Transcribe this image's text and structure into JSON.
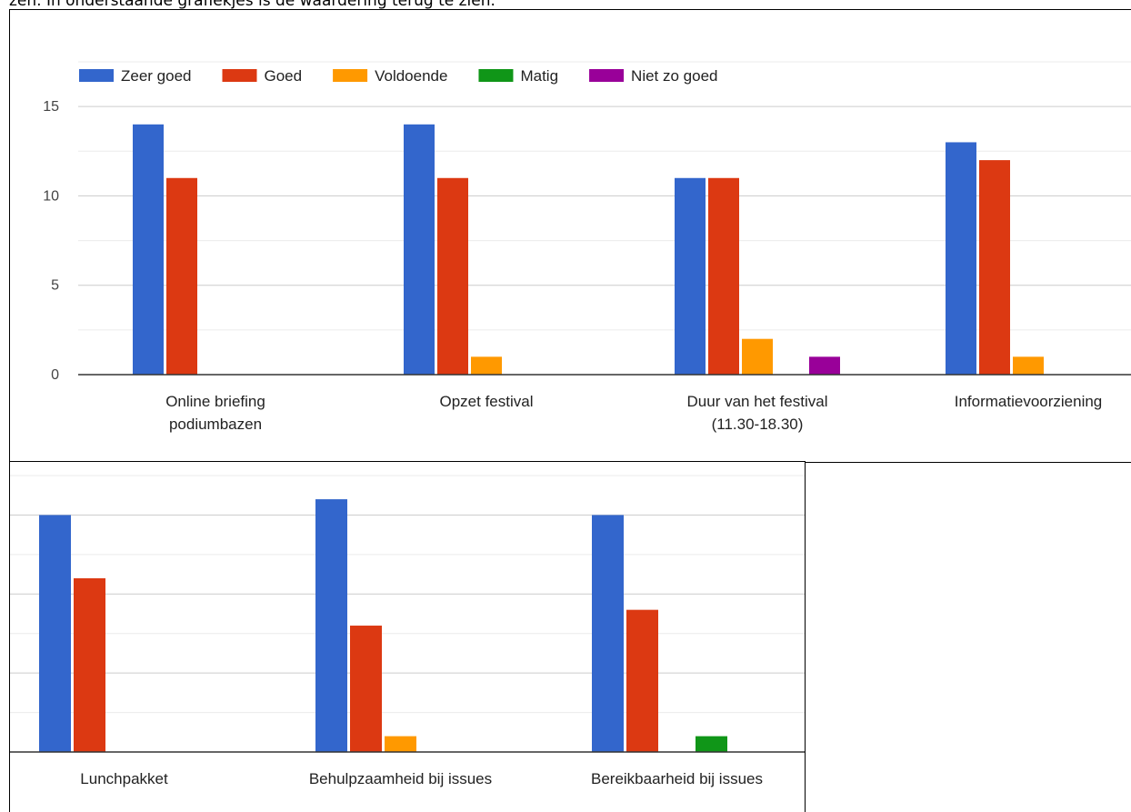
{
  "intro_text": "zen. In onderstaande grafiekjes is de waardering terug te zien.",
  "colors": {
    "Zeer goed": "#3366cc",
    "Goed": "#dc3912",
    "Voldoende": "#ff9900",
    "Matig": "#109618",
    "Niet zo goed": "#990099"
  },
  "chart_data": [
    {
      "type": "bar",
      "legend": [
        "Zeer goed",
        "Goed",
        "Voldoende",
        "Matig",
        "Niet zo goed"
      ],
      "legend_position": "top",
      "yticks": [
        0,
        5,
        10,
        15
      ],
      "ylim": [
        0,
        17.5
      ],
      "grid": true,
      "categories": [
        [
          "Online briefing",
          "podiumbazen"
        ],
        [
          "Opzet festival"
        ],
        [
          "Duur van het festival",
          "(11.30-18.30)"
        ],
        [
          "Informatievoorziening"
        ]
      ],
      "series": [
        {
          "name": "Zeer goed",
          "values": [
            14,
            14,
            11,
            13
          ]
        },
        {
          "name": "Goed",
          "values": [
            11,
            11,
            11,
            12
          ]
        },
        {
          "name": "Voldoende",
          "values": [
            0,
            1,
            2,
            1
          ]
        },
        {
          "name": "Matig",
          "values": [
            0,
            0,
            0,
            0
          ]
        },
        {
          "name": "Niet zo goed",
          "values": [
            0,
            0,
            1,
            0
          ]
        }
      ]
    },
    {
      "type": "bar",
      "grid": true,
      "ylim": [
        0,
        17.5
      ],
      "categories": [
        [
          "Lunchpakket"
        ],
        [
          "Behulpzaamheid bij issues"
        ],
        [
          "Bereikbaarheid bij issues"
        ]
      ],
      "series": [
        {
          "name": "Zeer goed",
          "values": [
            15,
            16,
            15
          ]
        },
        {
          "name": "Goed",
          "values": [
            11,
            8,
            9
          ]
        },
        {
          "name": "Voldoende",
          "values": [
            0,
            1,
            0
          ]
        },
        {
          "name": "Matig",
          "values": [
            0,
            0,
            1
          ]
        },
        {
          "name": "Niet zo goed",
          "values": [
            0,
            0,
            0
          ]
        }
      ]
    }
  ]
}
